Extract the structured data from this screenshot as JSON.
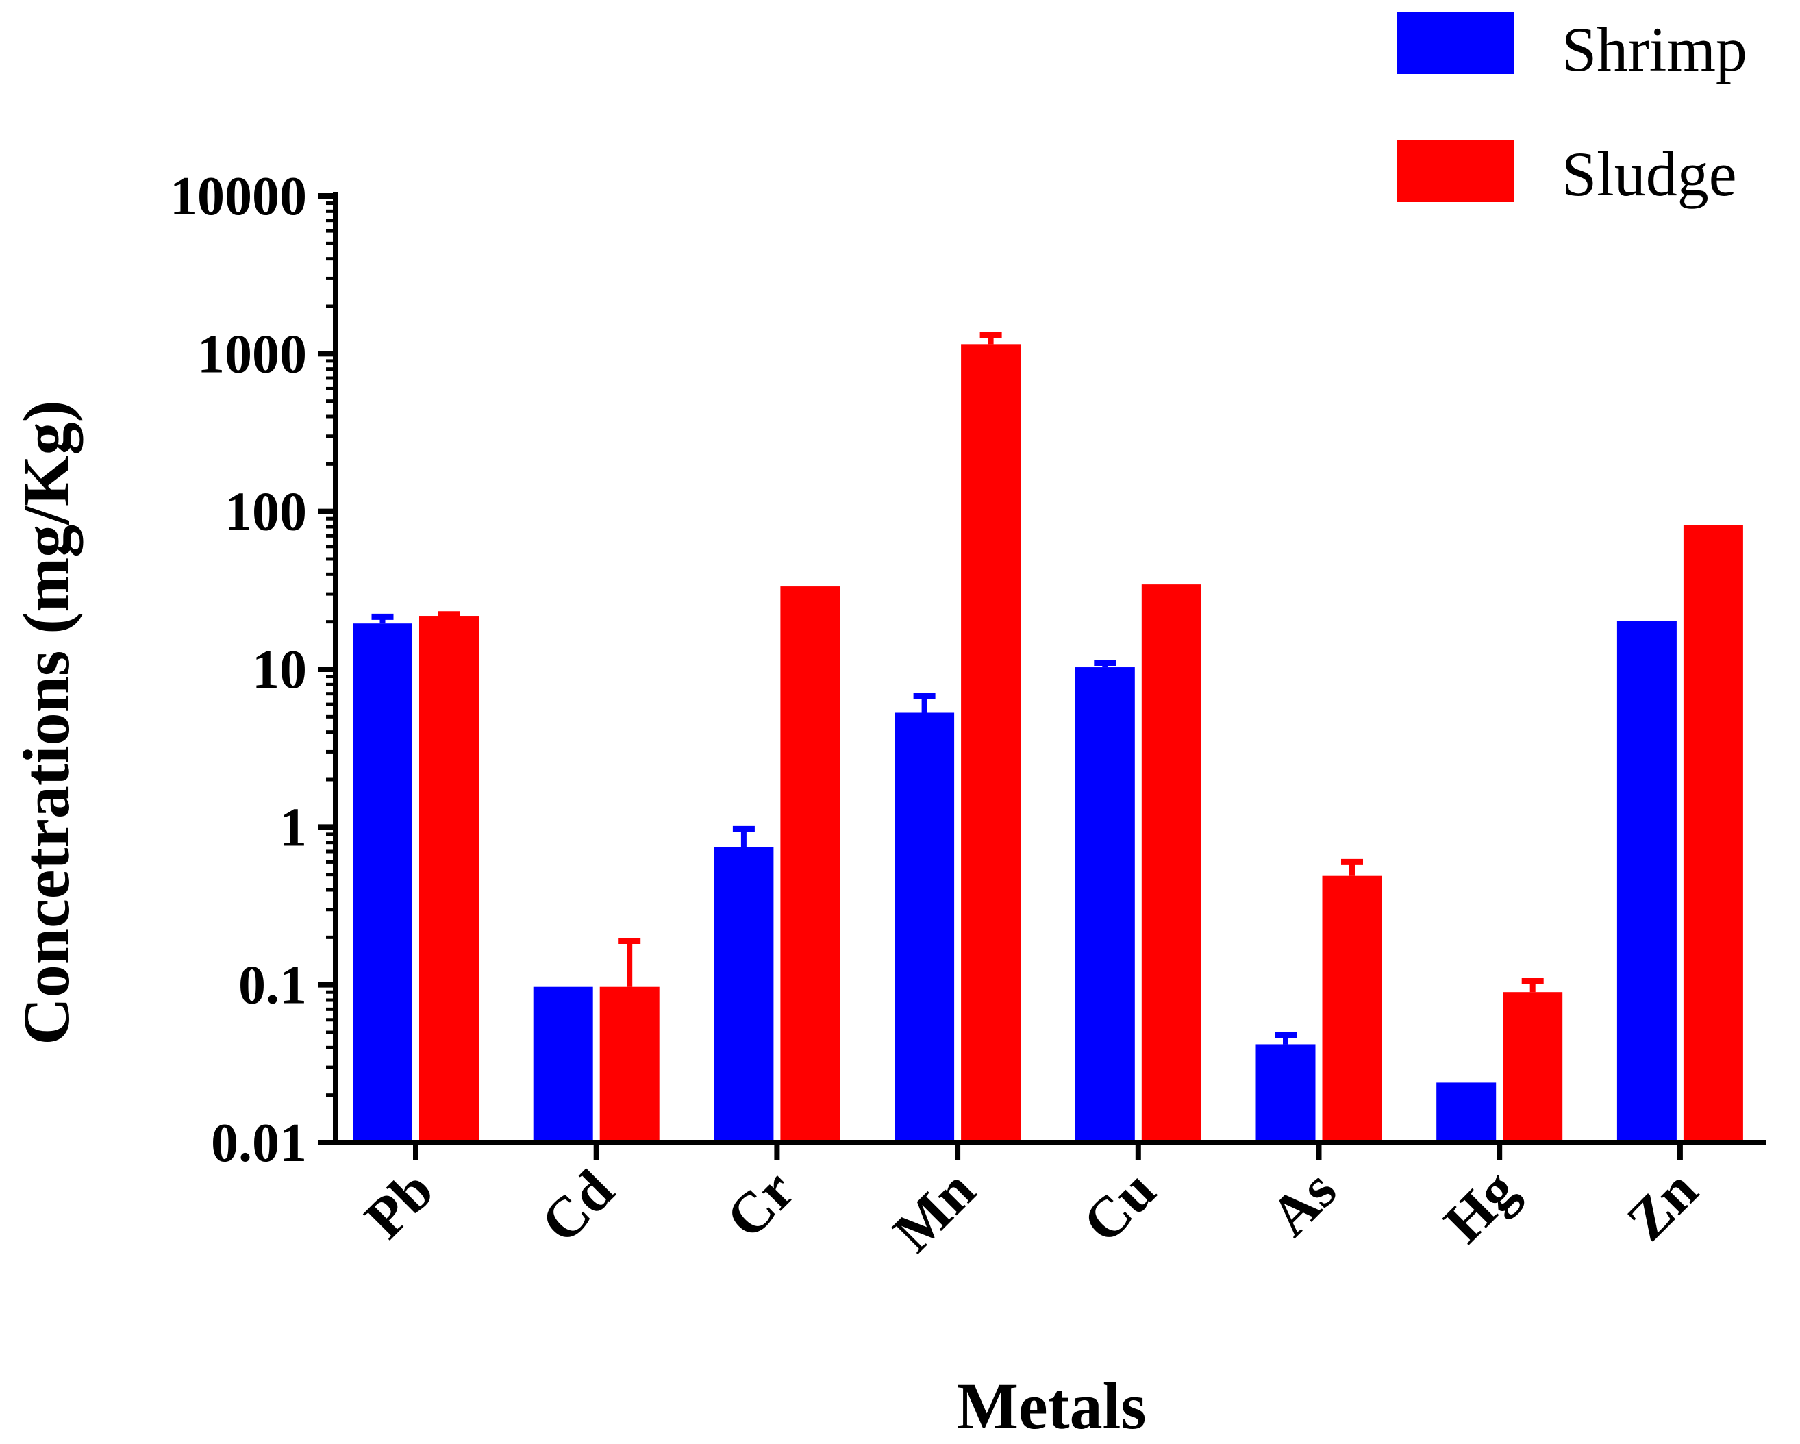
{
  "chart_data": {
    "type": "bar",
    "scale": "log",
    "categories": [
      "Pb",
      "Cd",
      "Cr",
      "Mn",
      "Cu",
      "As",
      "Hg",
      "Zn"
    ],
    "series": [
      {
        "name": "Shrimp",
        "color": "#0000ff",
        "values": [
          19.5,
          0.097,
          0.75,
          5.3,
          10.3,
          0.042,
          0.024,
          20.2
        ],
        "error_upper": [
          21.5,
          0.097,
          0.97,
          6.8,
          11.0,
          0.048,
          0.024,
          20.4
        ]
      },
      {
        "name": "Sludge",
        "color": "#ff0000",
        "values": [
          21.8,
          0.097,
          33.5,
          1150,
          34.5,
          0.49,
          0.09,
          82
        ],
        "error_upper": [
          22.3,
          0.19,
          33.8,
          1320,
          34.8,
          0.6,
          0.106,
          82.5
        ]
      }
    ],
    "ylim": [
      0.01,
      10000
    ],
    "yticks": [
      "0.01",
      "0.1",
      "1",
      "10",
      "100",
      "1000",
      "10000"
    ],
    "xlabel": "Metals",
    "ylabel": "Concetrations (mg/Kg)",
    "legend_position": "top-right",
    "grid": false
  }
}
